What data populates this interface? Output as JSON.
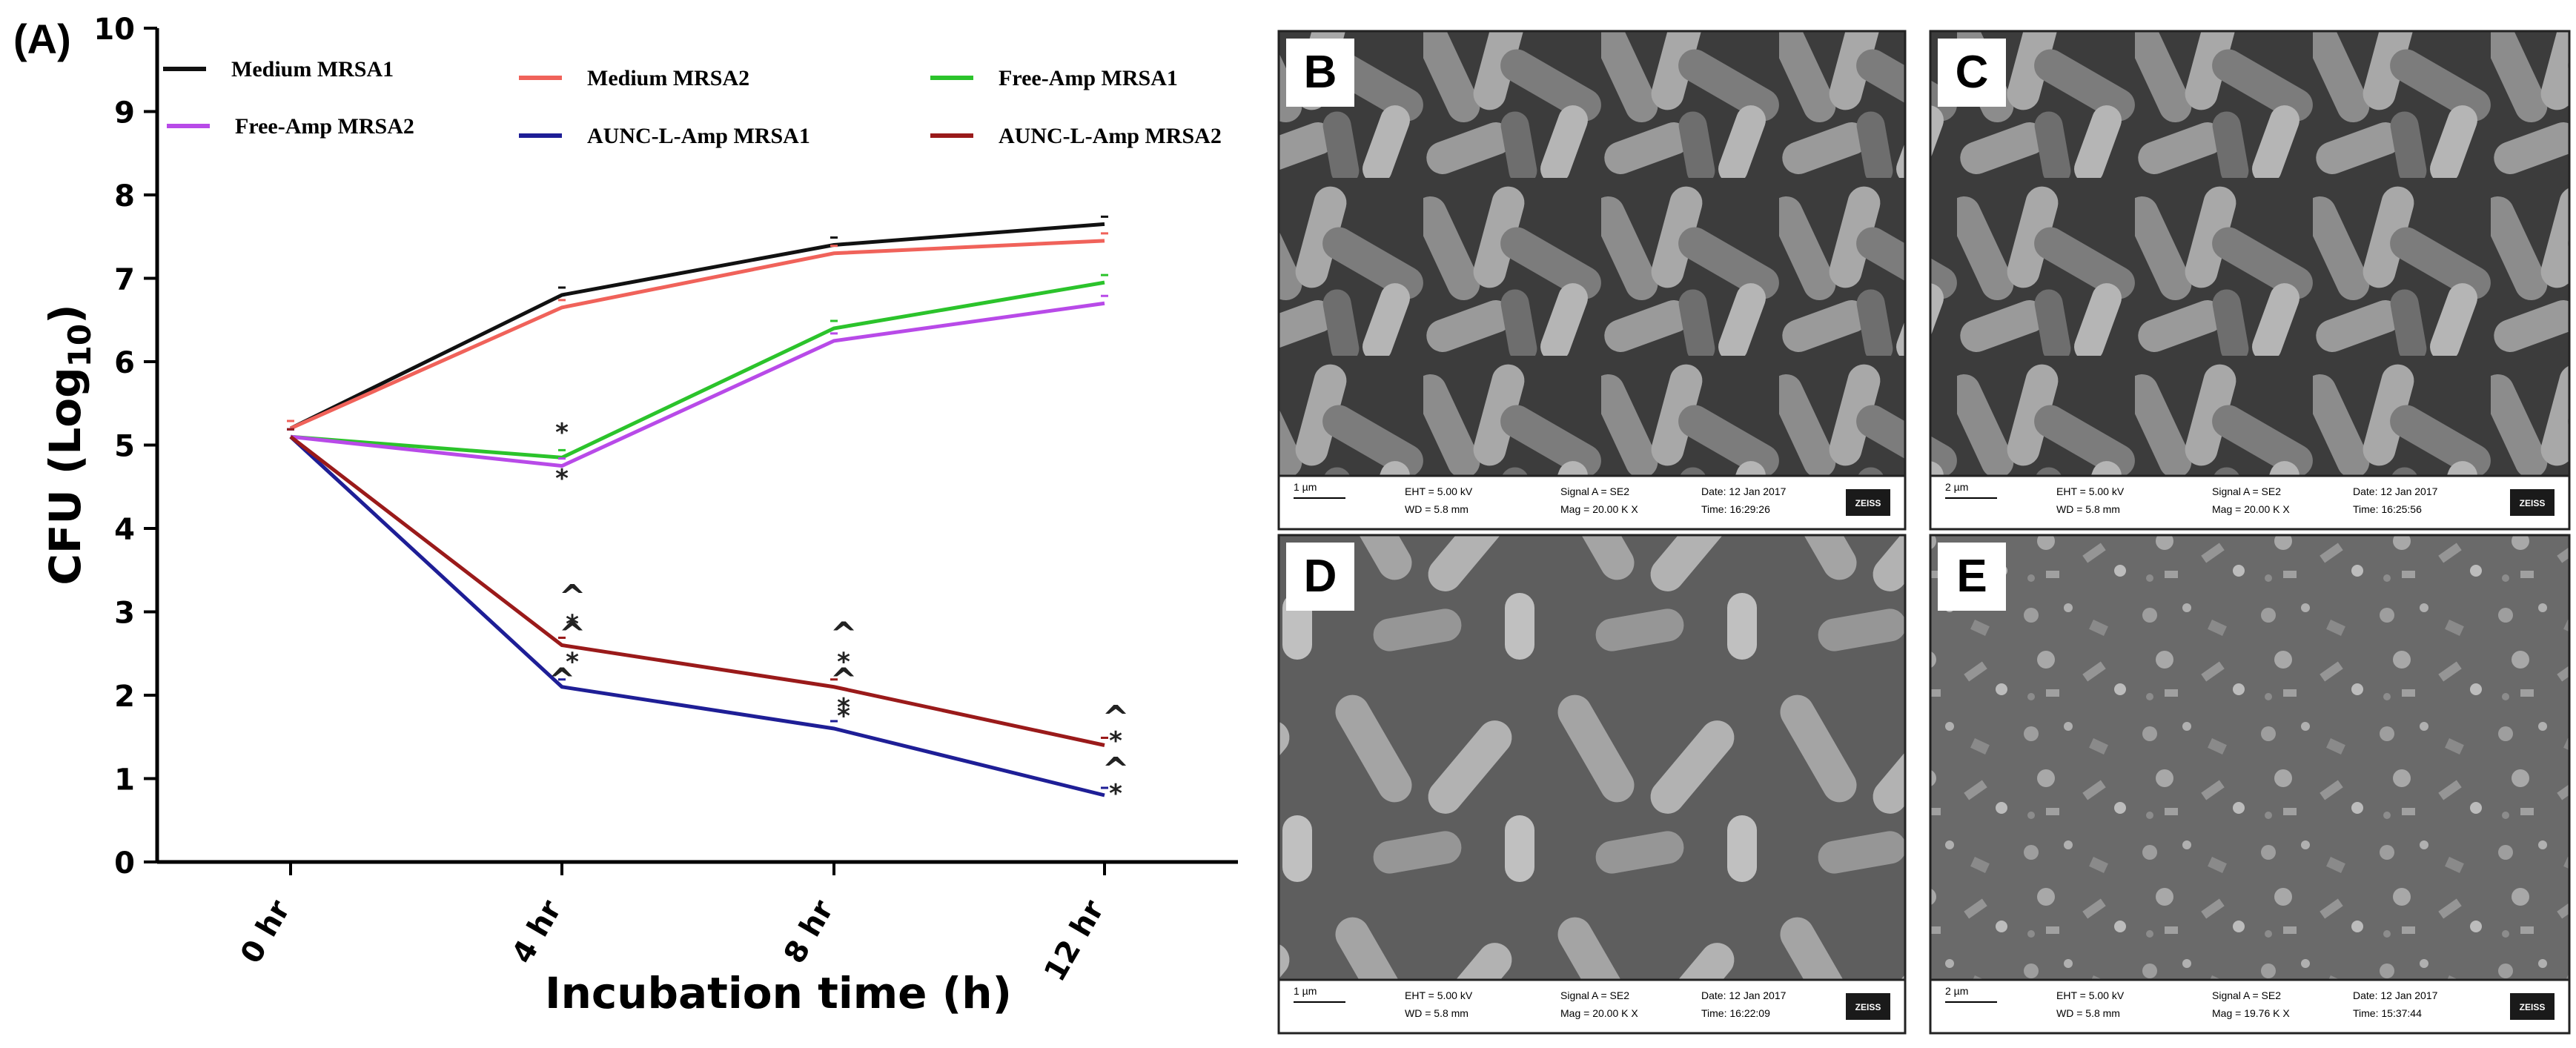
{
  "chart_data": {
    "type": "line",
    "panel_label": "(A)",
    "xlabel": "Incubation time (h)",
    "ylabel_main": "CFU (Log",
    "ylabel_sub": "10",
    "ylabel_end": ")",
    "categories": [
      "0 hr",
      "4 hr",
      "8 hr",
      "12 hr"
    ],
    "ylim": [
      0,
      10
    ],
    "yticks": [
      "0",
      "1",
      "2",
      "3",
      "4",
      "5",
      "6",
      "7",
      "8",
      "9",
      "10"
    ],
    "grid": false,
    "legend_position": "top",
    "series": [
      {
        "name": "Medium MRSA1",
        "color": "#111111",
        "values": [
          5.2,
          6.8,
          7.4,
          7.65
        ]
      },
      {
        "name": "Medium MRSA2",
        "color": "#f0625a",
        "values": [
          5.2,
          6.65,
          7.3,
          7.45
        ]
      },
      {
        "name": "Free-Amp MRSA1",
        "color": "#2bc32b",
        "values": [
          5.1,
          4.85,
          6.4,
          6.95
        ]
      },
      {
        "name": "Free-Amp MRSA2",
        "color": "#b84ae8",
        "values": [
          5.1,
          4.75,
          6.25,
          6.7
        ]
      },
      {
        "name": "AUNC-L-Amp MRSA1",
        "color": "#1e1e96",
        "values": [
          5.1,
          2.1,
          1.6,
          0.8
        ]
      },
      {
        "name": "AUNC-L-Amp MRSA2",
        "color": "#9a1a1a",
        "values": [
          5.1,
          2.6,
          2.1,
          1.4
        ]
      }
    ],
    "annotations": [
      "*",
      "*",
      "^",
      "*",
      "^",
      "*",
      "^",
      "*",
      "^",
      "*",
      "^",
      "*",
      "^",
      "*",
      "^",
      "*"
    ]
  },
  "micrographs": [
    {
      "label": "B",
      "scale": "1 µm",
      "eht": "EHT = 5.00 kV",
      "wd": "WD = 5.8 mm",
      "signal": "Signal A = SE2",
      "mag": "Mag = 20.00 K X",
      "date": "Date: 12 Jan 2017",
      "time": "Time: 16:29:26",
      "logo": "ZEISS"
    },
    {
      "label": "C",
      "scale": "2 µm",
      "eht": "EHT = 5.00 kV",
      "wd": "WD = 5.8 mm",
      "signal": "Signal A = SE2",
      "mag": "Mag = 20.00 K X",
      "date": "Date: 12 Jan 2017",
      "time": "Time: 16:25:56",
      "logo": "ZEISS"
    },
    {
      "label": "D",
      "scale": "1 µm",
      "eht": "EHT = 5.00 kV",
      "wd": "WD = 5.8 mm",
      "signal": "Signal A = SE2",
      "mag": "Mag = 20.00 K X",
      "date": "Date: 12 Jan 2017",
      "time": "Time: 16:22:09",
      "logo": "ZEISS"
    },
    {
      "label": "E",
      "scale": "2 µm",
      "eht": "EHT = 5.00 kV",
      "wd": "WD = 5.8 mm",
      "signal": "Signal A = SE2",
      "mag": "Mag = 19.76 K X",
      "date": "Date: 12 Jan 2017",
      "time": "Time: 15:37:44",
      "logo": "ZEISS"
    }
  ]
}
